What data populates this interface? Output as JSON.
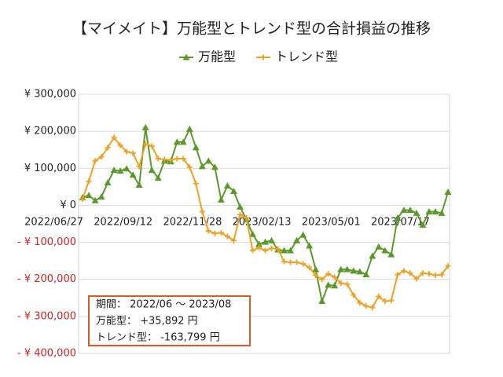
{
  "chart_data": {
    "type": "line",
    "title": "【マイメイト】万能型とトレンド型の合計損益の推移",
    "categories": [
      "2022/06/27",
      null,
      null,
      null,
      null,
      null,
      null,
      null,
      null,
      null,
      null,
      "2022/09/12",
      null,
      null,
      null,
      null,
      null,
      null,
      null,
      null,
      null,
      null,
      "2022/11/28",
      null,
      null,
      null,
      null,
      null,
      null,
      null,
      null,
      null,
      null,
      "2023/02/13",
      null,
      null,
      null,
      null,
      null,
      null,
      null,
      null,
      null,
      null,
      "2023/05/01",
      null,
      null,
      null,
      null,
      null,
      null,
      null,
      null,
      null,
      null,
      "2023/07/17",
      null,
      null,
      null
    ],
    "series": [
      {
        "name": "万能型",
        "color": "#5b9a2a",
        "marker": "triangle",
        "values": [
          21000,
          27000,
          13000,
          23000,
          61000,
          95000,
          93000,
          99000,
          82000,
          55000,
          210000,
          95000,
          74000,
          120000,
          118000,
          171000,
          171000,
          206000,
          156000,
          105000,
          120000,
          103000,
          15000,
          53000,
          38000,
          -4000,
          -38000,
          -78000,
          -105000,
          -99000,
          -95000,
          -120000,
          -122000,
          -122000,
          -95000,
          -80000,
          -109000,
          -173000,
          -259000,
          -215000,
          -217000,
          -173000,
          -173000,
          -177000,
          -179000,
          -187000,
          -137000,
          -112000,
          -122000,
          -133000,
          -34000,
          -13000,
          -13000,
          -21000,
          -53000,
          -17000,
          -17000,
          -21000,
          35892
        ]
      },
      {
        "name": "トレンド型",
        "color": "#f0a020",
        "marker": "plus",
        "values": [
          17000,
          65000,
          120000,
          131000,
          156000,
          183000,
          162000,
          145000,
          141000,
          105000,
          166000,
          160000,
          126000,
          124000,
          122000,
          126000,
          126000,
          103000,
          59000,
          -17000,
          -69000,
          -76000,
          -74000,
          -84000,
          -95000,
          -25000,
          -34000,
          -122000,
          -114000,
          -122000,
          -116000,
          -118000,
          -152000,
          -154000,
          -154000,
          -158000,
          -168000,
          -189000,
          -200000,
          -185000,
          -194000,
          -210000,
          -213000,
          -242000,
          -263000,
          -272000,
          -276000,
          -246000,
          -259000,
          -257000,
          -187000,
          -177000,
          -183000,
          -198000,
          -183000,
          -185000,
          -189000,
          -187000,
          -163799
        ]
      }
    ],
    "ylim": [
      -400000,
      300000
    ],
    "yticks": [
      {
        "value": -400000,
        "label": "- ¥ 400,000"
      },
      {
        "value": -300000,
        "label": "- ¥ 300,000"
      },
      {
        "value": -200000,
        "label": "- ¥ 200,000"
      },
      {
        "value": -100000,
        "label": "- ¥ 100,000"
      },
      {
        "value": 0,
        "label": "¥ 0"
      },
      {
        "value": 100000,
        "label": "¥ 100,000"
      },
      {
        "value": 200000,
        "label": "¥ 200,000"
      },
      {
        "value": 300000,
        "label": "¥ 300,000"
      }
    ],
    "grid": true,
    "negative_tick_color": "#d42020",
    "legend": "top",
    "annotations": [
      "期間： 2022/06 ～ 2023/08",
      "万能型： +35,892 円",
      "トレンド型： -163,799 円"
    ],
    "annotation_border_color": "#e0581e"
  }
}
